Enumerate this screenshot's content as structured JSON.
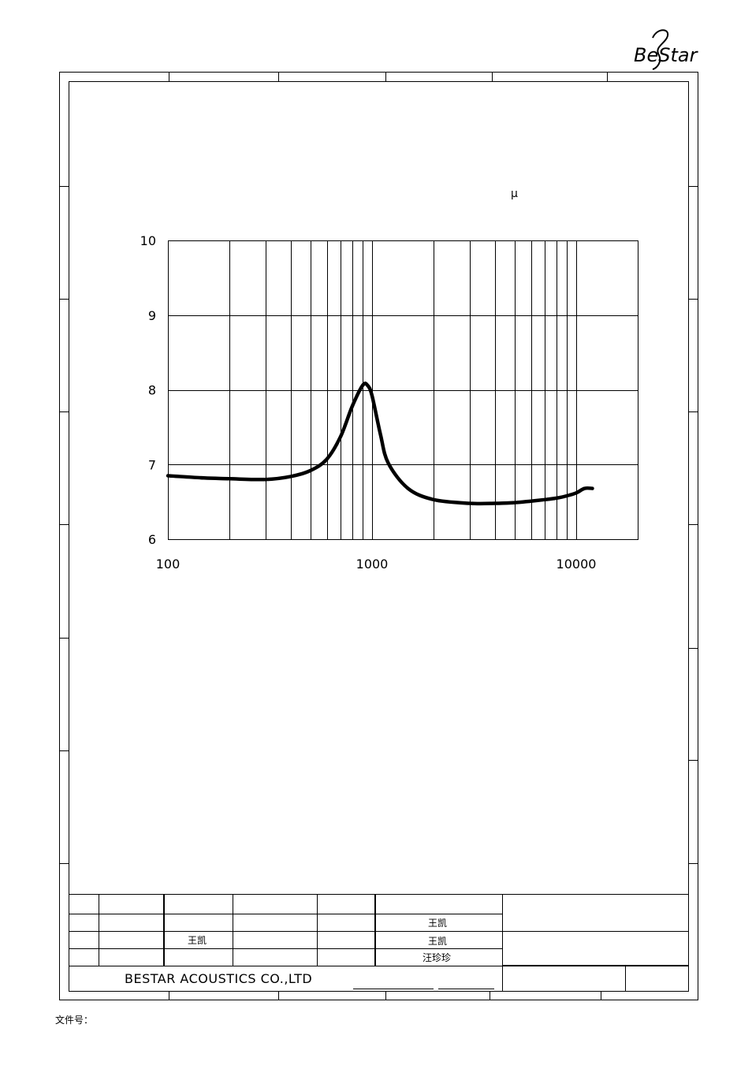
{
  "logo": {
    "text": "BeStar"
  },
  "unit_symbol": "μ",
  "title_block": {
    "company": "BESTAR  ACOUSTICS  CO.,LTD",
    "drawn_by": "王凯",
    "checked_by": "王凯",
    "approved_1": "王凯",
    "approved_2": "汪珍珍"
  },
  "footer": {
    "doc_no_label": "文件号："
  },
  "chart_data": {
    "type": "line",
    "x_scale": "log",
    "xlim": [
      100,
      20000
    ],
    "ylim": [
      6,
      10
    ],
    "x_ticks": [
      "100",
      "1000",
      "10000"
    ],
    "y_ticks": [
      "6",
      "7",
      "8",
      "9",
      "10"
    ],
    "grid": true,
    "series": [
      {
        "x": [
          100,
          150,
          200,
          300,
          400,
          500,
          600,
          700,
          800,
          900,
          950,
          1000,
          1100,
          1200,
          1500,
          2000,
          3000,
          4000,
          5000,
          6000,
          7000,
          8000,
          9000,
          10000,
          11000,
          12000
        ],
        "y": [
          6.85,
          6.82,
          6.81,
          6.8,
          6.84,
          6.92,
          7.07,
          7.37,
          7.78,
          8.06,
          8.06,
          7.92,
          7.4,
          7.02,
          6.68,
          6.53,
          6.48,
          6.48,
          6.49,
          6.51,
          6.53,
          6.55,
          6.58,
          6.62,
          6.68,
          6.68
        ]
      }
    ]
  }
}
